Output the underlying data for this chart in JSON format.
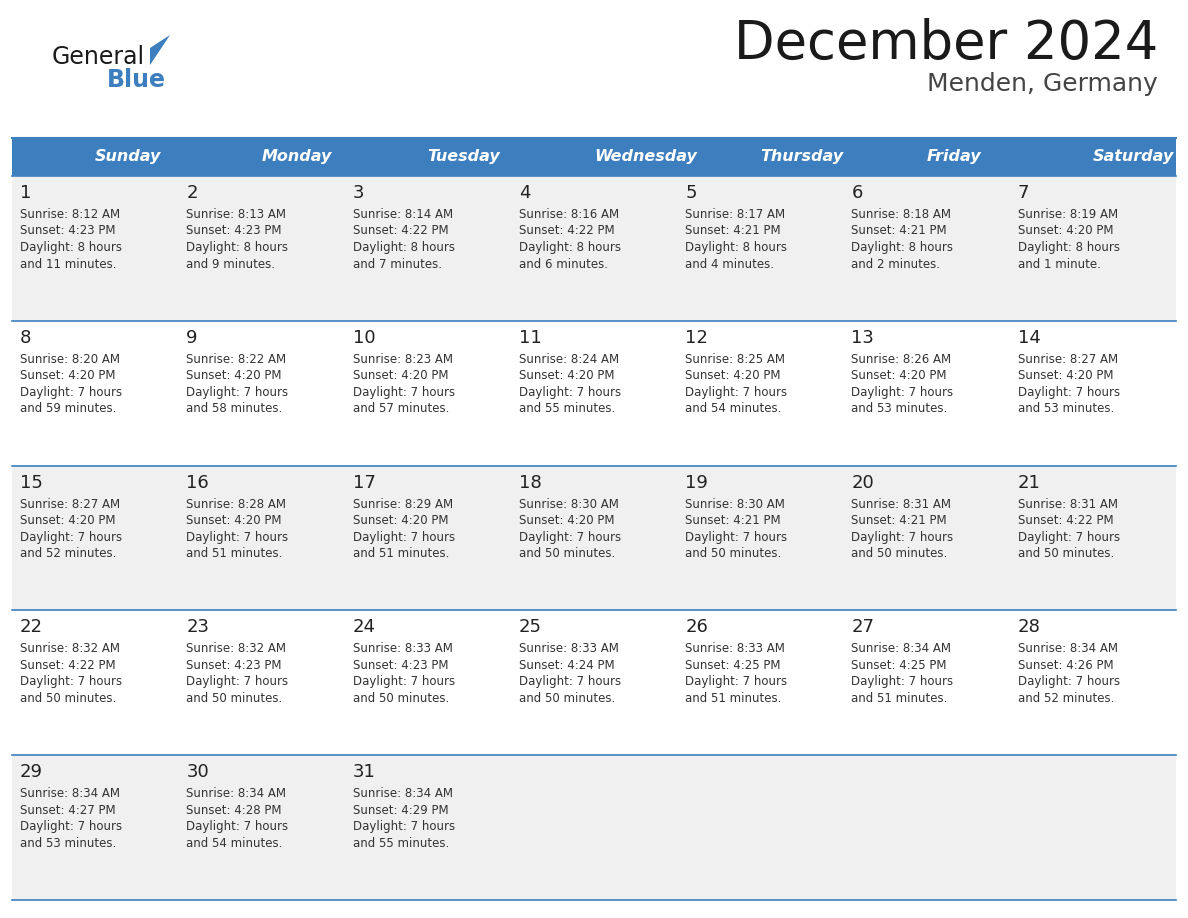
{
  "title": "December 2024",
  "subtitle": "Menden, Germany",
  "header_color": "#3d7ebf",
  "header_text_color": "#ffffff",
  "day_names": [
    "Sunday",
    "Monday",
    "Tuesday",
    "Wednesday",
    "Thursday",
    "Friday",
    "Saturday"
  ],
  "bg_color": "#ffffff",
  "cell_bg_even": "#f0f0f0",
  "cell_bg_odd": "#ffffff",
  "line_color": "#3d7ebf",
  "days": [
    {
      "day": 1,
      "col": 0,
      "row": 0,
      "sunrise": "8:12 AM",
      "sunset": "4:23 PM",
      "daylight": "8 hours",
      "daylight2": "and 11 minutes."
    },
    {
      "day": 2,
      "col": 1,
      "row": 0,
      "sunrise": "8:13 AM",
      "sunset": "4:23 PM",
      "daylight": "8 hours",
      "daylight2": "and 9 minutes."
    },
    {
      "day": 3,
      "col": 2,
      "row": 0,
      "sunrise": "8:14 AM",
      "sunset": "4:22 PM",
      "daylight": "8 hours",
      "daylight2": "and 7 minutes."
    },
    {
      "day": 4,
      "col": 3,
      "row": 0,
      "sunrise": "8:16 AM",
      "sunset": "4:22 PM",
      "daylight": "8 hours",
      "daylight2": "and 6 minutes."
    },
    {
      "day": 5,
      "col": 4,
      "row": 0,
      "sunrise": "8:17 AM",
      "sunset": "4:21 PM",
      "daylight": "8 hours",
      "daylight2": "and 4 minutes."
    },
    {
      "day": 6,
      "col": 5,
      "row": 0,
      "sunrise": "8:18 AM",
      "sunset": "4:21 PM",
      "daylight": "8 hours",
      "daylight2": "and 2 minutes."
    },
    {
      "day": 7,
      "col": 6,
      "row": 0,
      "sunrise": "8:19 AM",
      "sunset": "4:20 PM",
      "daylight": "8 hours",
      "daylight2": "and 1 minute."
    },
    {
      "day": 8,
      "col": 0,
      "row": 1,
      "sunrise": "8:20 AM",
      "sunset": "4:20 PM",
      "daylight": "7 hours",
      "daylight2": "and 59 minutes."
    },
    {
      "day": 9,
      "col": 1,
      "row": 1,
      "sunrise": "8:22 AM",
      "sunset": "4:20 PM",
      "daylight": "7 hours",
      "daylight2": "and 58 minutes."
    },
    {
      "day": 10,
      "col": 2,
      "row": 1,
      "sunrise": "8:23 AM",
      "sunset": "4:20 PM",
      "daylight": "7 hours",
      "daylight2": "and 57 minutes."
    },
    {
      "day": 11,
      "col": 3,
      "row": 1,
      "sunrise": "8:24 AM",
      "sunset": "4:20 PM",
      "daylight": "7 hours",
      "daylight2": "and 55 minutes."
    },
    {
      "day": 12,
      "col": 4,
      "row": 1,
      "sunrise": "8:25 AM",
      "sunset": "4:20 PM",
      "daylight": "7 hours",
      "daylight2": "and 54 minutes."
    },
    {
      "day": 13,
      "col": 5,
      "row": 1,
      "sunrise": "8:26 AM",
      "sunset": "4:20 PM",
      "daylight": "7 hours",
      "daylight2": "and 53 minutes."
    },
    {
      "day": 14,
      "col": 6,
      "row": 1,
      "sunrise": "8:27 AM",
      "sunset": "4:20 PM",
      "daylight": "7 hours",
      "daylight2": "and 53 minutes."
    },
    {
      "day": 15,
      "col": 0,
      "row": 2,
      "sunrise": "8:27 AM",
      "sunset": "4:20 PM",
      "daylight": "7 hours",
      "daylight2": "and 52 minutes."
    },
    {
      "day": 16,
      "col": 1,
      "row": 2,
      "sunrise": "8:28 AM",
      "sunset": "4:20 PM",
      "daylight": "7 hours",
      "daylight2": "and 51 minutes."
    },
    {
      "day": 17,
      "col": 2,
      "row": 2,
      "sunrise": "8:29 AM",
      "sunset": "4:20 PM",
      "daylight": "7 hours",
      "daylight2": "and 51 minutes."
    },
    {
      "day": 18,
      "col": 3,
      "row": 2,
      "sunrise": "8:30 AM",
      "sunset": "4:20 PM",
      "daylight": "7 hours",
      "daylight2": "and 50 minutes."
    },
    {
      "day": 19,
      "col": 4,
      "row": 2,
      "sunrise": "8:30 AM",
      "sunset": "4:21 PM",
      "daylight": "7 hours",
      "daylight2": "and 50 minutes."
    },
    {
      "day": 20,
      "col": 5,
      "row": 2,
      "sunrise": "8:31 AM",
      "sunset": "4:21 PM",
      "daylight": "7 hours",
      "daylight2": "and 50 minutes."
    },
    {
      "day": 21,
      "col": 6,
      "row": 2,
      "sunrise": "8:31 AM",
      "sunset": "4:22 PM",
      "daylight": "7 hours",
      "daylight2": "and 50 minutes."
    },
    {
      "day": 22,
      "col": 0,
      "row": 3,
      "sunrise": "8:32 AM",
      "sunset": "4:22 PM",
      "daylight": "7 hours",
      "daylight2": "and 50 minutes."
    },
    {
      "day": 23,
      "col": 1,
      "row": 3,
      "sunrise": "8:32 AM",
      "sunset": "4:23 PM",
      "daylight": "7 hours",
      "daylight2": "and 50 minutes."
    },
    {
      "day": 24,
      "col": 2,
      "row": 3,
      "sunrise": "8:33 AM",
      "sunset": "4:23 PM",
      "daylight": "7 hours",
      "daylight2": "and 50 minutes."
    },
    {
      "day": 25,
      "col": 3,
      "row": 3,
      "sunrise": "8:33 AM",
      "sunset": "4:24 PM",
      "daylight": "7 hours",
      "daylight2": "and 50 minutes."
    },
    {
      "day": 26,
      "col": 4,
      "row": 3,
      "sunrise": "8:33 AM",
      "sunset": "4:25 PM",
      "daylight": "7 hours",
      "daylight2": "and 51 minutes."
    },
    {
      "day": 27,
      "col": 5,
      "row": 3,
      "sunrise": "8:34 AM",
      "sunset": "4:25 PM",
      "daylight": "7 hours",
      "daylight2": "and 51 minutes."
    },
    {
      "day": 28,
      "col": 6,
      "row": 3,
      "sunrise": "8:34 AM",
      "sunset": "4:26 PM",
      "daylight": "7 hours",
      "daylight2": "and 52 minutes."
    },
    {
      "day": 29,
      "col": 0,
      "row": 4,
      "sunrise": "8:34 AM",
      "sunset": "4:27 PM",
      "daylight": "7 hours",
      "daylight2": "and 53 minutes."
    },
    {
      "day": 30,
      "col": 1,
      "row": 4,
      "sunrise": "8:34 AM",
      "sunset": "4:28 PM",
      "daylight": "7 hours",
      "daylight2": "and 54 minutes."
    },
    {
      "day": 31,
      "col": 2,
      "row": 4,
      "sunrise": "8:34 AM",
      "sunset": "4:29 PM",
      "daylight": "7 hours",
      "daylight2": "and 55 minutes."
    }
  ]
}
